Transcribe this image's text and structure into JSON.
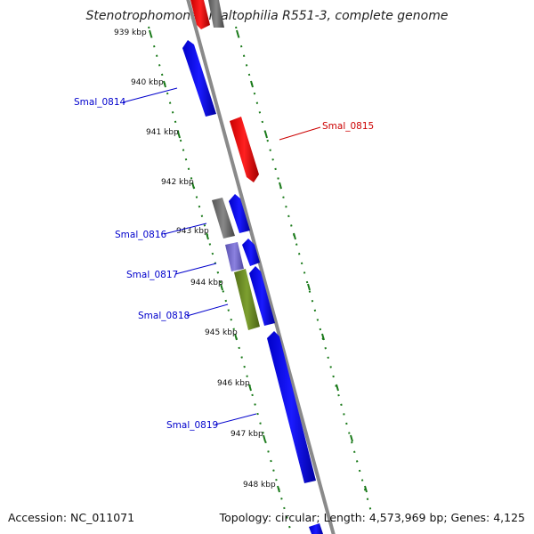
{
  "title": "Stenotrophomonas maltophilia R551-3, complete genome",
  "accession": "Accession: NC_011071",
  "topology": "Topology: circular; Length: 4,573,969 bp; Genes: 4,125",
  "kbp_labels": [
    "939 kbp",
    "940 kbp",
    "941 kbp",
    "942 kbp",
    "943 kbp",
    "944 kbp",
    "945 kbp",
    "946 kbp",
    "947 kbp",
    "948 kbp"
  ],
  "genes": [
    {
      "label": "Smal_0814",
      "color": "#0000ff"
    },
    {
      "label": "Smal_0815",
      "color": "#ff0000"
    },
    {
      "label": "Smal_0816",
      "color": "#0000ff"
    },
    {
      "label": "Smal_0817",
      "color": "#0000ff"
    },
    {
      "label": "Smal_0818",
      "color": "#0000ff"
    },
    {
      "label": "Smal_0819",
      "color": "#0000ff"
    }
  ],
  "colors": {
    "backbone": "#8a8a8a",
    "tick": "#1a7a1a",
    "forward": "#0000ee",
    "reverse": "#ee0000",
    "gray_feature": "#666666",
    "purple_feature": "#7a6fd0",
    "olive_feature": "#6b8e23"
  }
}
